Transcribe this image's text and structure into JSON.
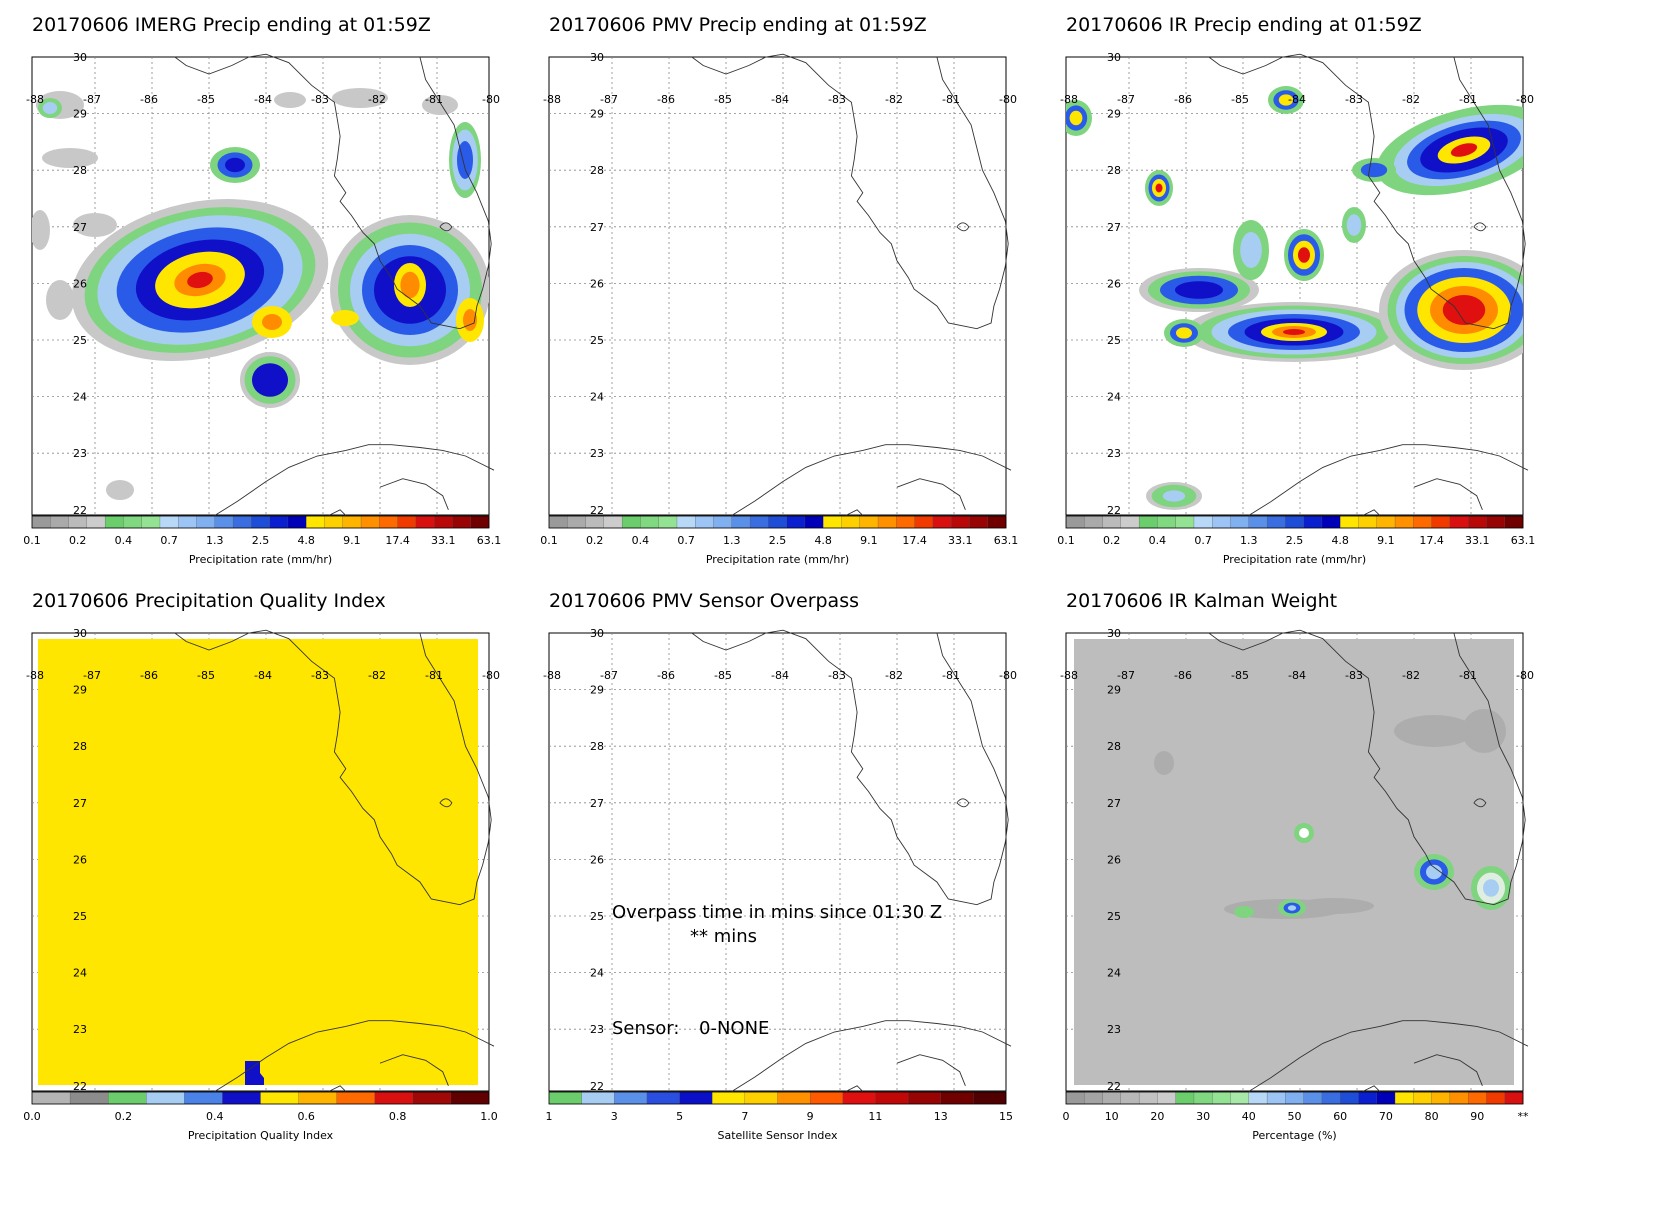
{
  "colors": {
    "grid": "#888888",
    "coast": "#333333",
    "gray_light": "#c8c8c8",
    "gray_dark": "#888888",
    "green": "#7fd47f",
    "lightblue": "#a8cdf2",
    "blue": "#2a5be8",
    "darkblue": "#1010c8",
    "yellow": "#ffe600",
    "orange": "#ff8c00",
    "red": "#e01010",
    "darkred": "#901010",
    "kalman_bg": "#bdbdbd"
  },
  "panels": [
    {
      "title": "20170606 IMERG Precip ending at 01:59Z",
      "colorbar": {
        "title": "Precipitation rate (mm/hr)",
        "labels": [
          "0.1",
          "0.2",
          "0.4",
          "0.7",
          "1.3",
          "2.5",
          "4.8",
          "9.1",
          "17.4",
          "33.1",
          "63.1"
        ],
        "colors": [
          "#9a9a9a",
          "#aaaaaa",
          "#bbbbbb",
          "#cccccc",
          "#6ccd6c",
          "#80d880",
          "#94e294",
          "#b8d8f8",
          "#9cc4f4",
          "#80b0f0",
          "#5a90e8",
          "#3a6ee0",
          "#1e4ed8",
          "#0a20d0",
          "#0000b8",
          "#ffe600",
          "#ffd000",
          "#ffb400",
          "#ff9000",
          "#ff6a00",
          "#f03a00",
          "#d81010",
          "#b80808",
          "#980404",
          "#700000"
        ]
      }
    },
    {
      "title": "20170606 PMV Precip ending at 01:59Z",
      "colorbar": {
        "title": "Precipitation rate (mm/hr)",
        "labels": [
          "0.1",
          "0.2",
          "0.4",
          "0.7",
          "1.3",
          "2.5",
          "4.8",
          "9.1",
          "17.4",
          "33.1",
          "63.1"
        ],
        "colors": [
          "#9a9a9a",
          "#aaaaaa",
          "#bbbbbb",
          "#cccccc",
          "#6ccd6c",
          "#80d880",
          "#94e294",
          "#b8d8f8",
          "#9cc4f4",
          "#80b0f0",
          "#5a90e8",
          "#3a6ee0",
          "#1e4ed8",
          "#0a20d0",
          "#0000b8",
          "#ffe600",
          "#ffd000",
          "#ffb400",
          "#ff9000",
          "#ff6a00",
          "#f03a00",
          "#d81010",
          "#b80808",
          "#980404",
          "#700000"
        ]
      }
    },
    {
      "title": "20170606 IR Precip ending at 01:59Z",
      "colorbar": {
        "title": "Precipitation rate (mm/hr)",
        "labels": [
          "0.1",
          "0.2",
          "0.4",
          "0.7",
          "1.3",
          "2.5",
          "4.8",
          "9.1",
          "17.4",
          "33.1",
          "63.1"
        ],
        "colors": [
          "#9a9a9a",
          "#aaaaaa",
          "#bbbbbb",
          "#cccccc",
          "#6ccd6c",
          "#80d880",
          "#94e294",
          "#b8d8f8",
          "#9cc4f4",
          "#80b0f0",
          "#5a90e8",
          "#3a6ee0",
          "#1e4ed8",
          "#0a20d0",
          "#0000b8",
          "#ffe600",
          "#ffd000",
          "#ffb400",
          "#ff9000",
          "#ff6a00",
          "#f03a00",
          "#d81010",
          "#b80808",
          "#980404",
          "#700000"
        ]
      }
    },
    {
      "title": "20170606 Precipitation Quality Index",
      "colorbar": {
        "title": "Precipitation Quality Index",
        "labels": [
          "0.0",
          "0.2",
          "0.4",
          "0.6",
          "0.8",
          "1.0"
        ],
        "colors": [
          "#b4b4b4",
          "#8c8c8c",
          "#6ccd6c",
          "#a8cdf2",
          "#4a82e8",
          "#1010c8",
          "#ffe600",
          "#ffb400",
          "#ff6a00",
          "#d81010",
          "#a00808",
          "#600000"
        ]
      }
    },
    {
      "title": "20170606 PMV Sensor Overpass",
      "overpass_line1": "Overpass time in mins since 01:30 Z",
      "overpass_line2": "** mins",
      "sensor_label": "Sensor:",
      "sensor_value": "0-NONE",
      "colorbar": {
        "title": "Satellite Sensor Index",
        "labels": [
          "1",
          "3",
          "5",
          "7",
          "9",
          "11",
          "13",
          "15"
        ],
        "colors": [
          "#6ccd6c",
          "#a8cdf2",
          "#5a90e8",
          "#2a4ee0",
          "#0a10c8",
          "#ffe600",
          "#ffd000",
          "#ff9000",
          "#ff5a00",
          "#e01010",
          "#c00808",
          "#980404",
          "#700000",
          "#500000"
        ]
      }
    },
    {
      "title": "20170606 IR Kalman Weight",
      "colorbar": {
        "title": "Percentage (%)",
        "labels": [
          "0",
          "10",
          "20",
          "30",
          "40",
          "50",
          "60",
          "70",
          "80",
          "90",
          "**"
        ],
        "colors": [
          "#9a9a9a",
          "#a4a4a4",
          "#aeaeae",
          "#b8b8b8",
          "#c2c2c2",
          "#cccccc",
          "#6ccd6c",
          "#80d880",
          "#94e294",
          "#a8e8a8",
          "#b8d8f8",
          "#9cc4f4",
          "#80b0f0",
          "#5a90e8",
          "#3a6ee0",
          "#1e4ed8",
          "#0a20d0",
          "#0000b8",
          "#ffe600",
          "#ffd000",
          "#ffb400",
          "#ff9000",
          "#ff6a00",
          "#f03a00",
          "#d81010"
        ]
      }
    }
  ],
  "map": {
    "lat_ticks": [
      "30",
      "29",
      "28",
      "27",
      "26",
      "25",
      "24",
      "23",
      "22"
    ],
    "lon_ticks": [
      "-88",
      "-87",
      "-86",
      "-85",
      "-84",
      "-83",
      "-82",
      "-81",
      "-80"
    ]
  }
}
